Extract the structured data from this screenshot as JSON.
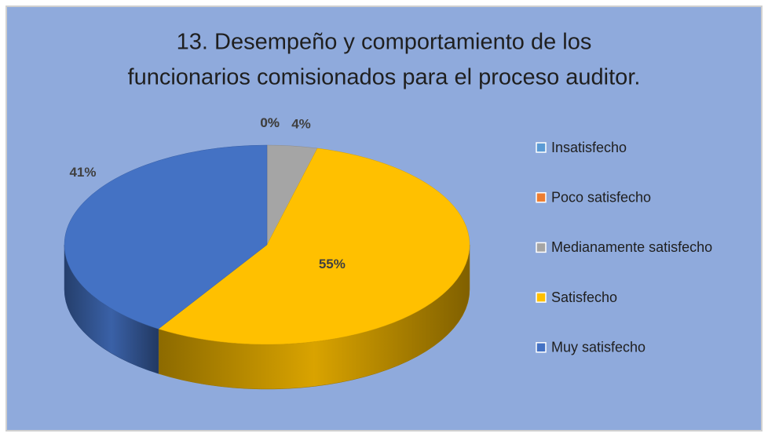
{
  "chart_data": {
    "type": "pie",
    "title": [
      "13. Desempeño y comportamiento de los",
      "funcionarios comisionados para el proceso auditor."
    ],
    "categories": [
      "Insatisfecho",
      "Poco satisfecho",
      "Medianamente satisfecho",
      "Satisfecho",
      "Muy satisfecho"
    ],
    "values": [
      0,
      0,
      4,
      55,
      41
    ],
    "value_labels": [
      "0%",
      "0%",
      "4%",
      "55%",
      "41%"
    ],
    "colors": [
      "#5b9bd5",
      "#ed7d31",
      "#a5a5a5",
      "#ffc000",
      "#4472c4"
    ],
    "legend": "right"
  }
}
